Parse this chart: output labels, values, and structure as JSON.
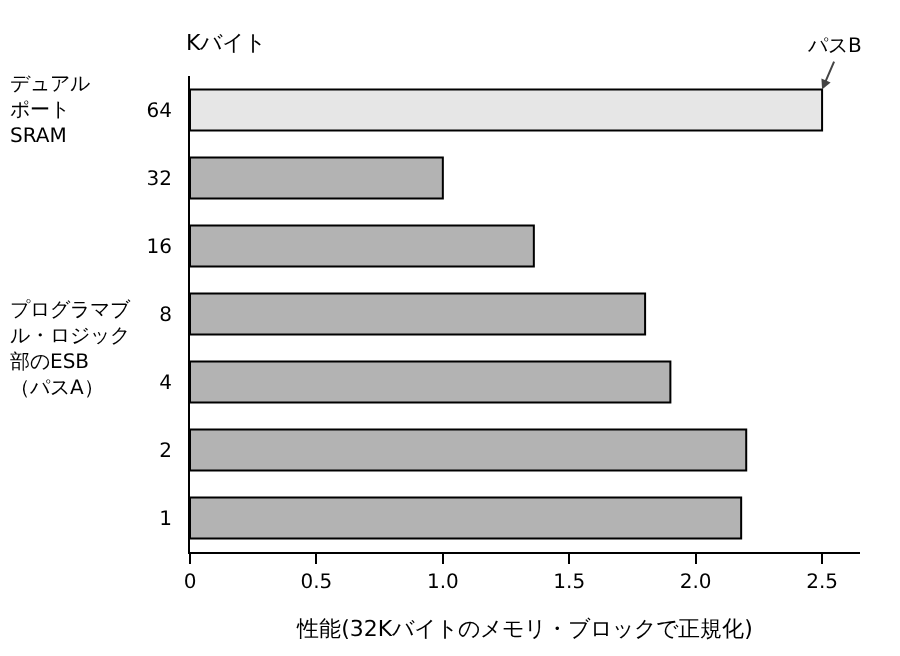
{
  "chart_data": {
    "type": "bar",
    "orientation": "horizontal",
    "ylabel": "Kバイト",
    "xlabel": "性能(32Kバイトのメモリ・ブロックで正規化)",
    "categories": [
      "64",
      "32",
      "16",
      "8",
      "4",
      "2",
      "1"
    ],
    "values": [
      2.5,
      1.0,
      1.36,
      1.8,
      1.9,
      2.2,
      2.18
    ],
    "colors": [
      "#e6e6e6",
      "#b3b3b3",
      "#b3b3b3",
      "#b3b3b3",
      "#b3b3b3",
      "#b3b3b3",
      "#b3b3b3"
    ],
    "xlim": [
      0,
      2.65
    ],
    "xticks": [
      0,
      0.5,
      {
        "value": 1,
        "label": "1.0"
      },
      1.5,
      {
        "value": 2,
        "label": "2.0"
      },
      2.5
    ],
    "grid": false,
    "legend": false,
    "annotations": [
      {
        "text": "パスB",
        "x": 2.5,
        "y": "64"
      },
      "デュアルポートSRAM",
      "プログラマブル・ロジック部のESB（パスA）"
    ]
  }
}
